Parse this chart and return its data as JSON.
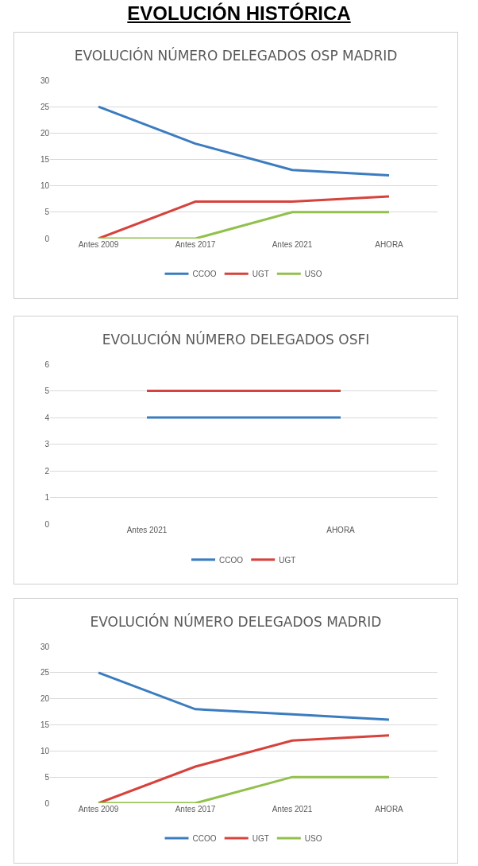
{
  "chart_data": [
    {
      "type": "line",
      "title": "EVOLUCIÓN NÚMERO DELEGADOS OSP MADRID",
      "annotations": [
        "EVOLUCIÓN HISTÓRICA"
      ],
      "categories": [
        "Antes 2009",
        "Antes 2017",
        "Antes 2021",
        "AHORA"
      ],
      "ylim": [
        0,
        30
      ],
      "yticks": [
        0,
        5,
        10,
        15,
        20,
        25,
        30
      ],
      "grid": "y",
      "legend": "bottom",
      "marker": "none",
      "line_style": "solid",
      "series": [
        {
          "name": "CCOO",
          "color": "#3b7cc0",
          "values": [
            25,
            18,
            13,
            12
          ]
        },
        {
          "name": "UGT",
          "color": "#d6423c",
          "values": [
            0,
            7,
            7,
            8
          ]
        },
        {
          "name": "USO",
          "color": "#92c04c",
          "values": [
            0,
            0,
            5,
            5
          ]
        }
      ]
    },
    {
      "type": "line",
      "title": "EVOLUCIÓN NÚMERO DELEGADOS OSFI",
      "categories": [
        "Antes 2021",
        "AHORA"
      ],
      "ylim": [
        0,
        6
      ],
      "yticks": [
        0,
        1,
        2,
        3,
        4,
        5,
        6
      ],
      "grid": "y",
      "legend": "bottom",
      "marker": "none",
      "line_style": "solid",
      "series": [
        {
          "name": "CCOO",
          "color": "#3b7cc0",
          "values": [
            4,
            4
          ]
        },
        {
          "name": "UGT",
          "color": "#d6423c",
          "values": [
            5,
            5
          ]
        }
      ]
    },
    {
      "type": "line",
      "title": "EVOLUCIÓN NÚMERO DELEGADOS MADRID",
      "categories": [
        "Antes 2009",
        "Antes 2017",
        "Antes 2021",
        "AHORA"
      ],
      "ylim": [
        0,
        30
      ],
      "yticks": [
        0,
        5,
        10,
        15,
        20,
        25,
        30
      ],
      "grid": "y",
      "legend": "bottom",
      "marker": "none",
      "line_style": "solid",
      "series": [
        {
          "name": "CCOO",
          "color": "#3b7cc0",
          "values": [
            25,
            18,
            17,
            16
          ]
        },
        {
          "name": "UGT",
          "color": "#d6423c",
          "values": [
            0,
            7,
            12,
            13
          ]
        },
        {
          "name": "USO",
          "color": "#92c04c",
          "values": [
            0,
            0,
            5,
            5
          ]
        }
      ]
    }
  ]
}
